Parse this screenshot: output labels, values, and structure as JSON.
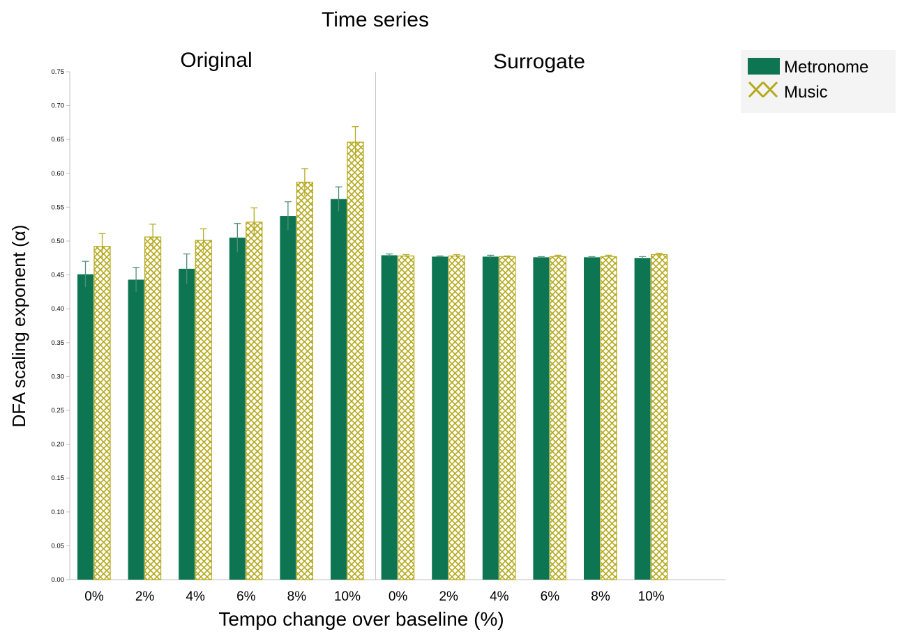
{
  "chart_data": {
    "type": "bar",
    "title": "Time series",
    "xlabel": "Tempo change over baseline (%)",
    "ylabel": "DFA scaling exponent  (α)",
    "ylim": [
      0,
      0.75
    ],
    "yticks": [
      "0.00",
      "0.05",
      "0.10",
      "0.15",
      "0.20",
      "0.25",
      "0.30",
      "0.35",
      "0.40",
      "0.45",
      "0.50",
      "0.55",
      "0.60",
      "0.65",
      "0.70",
      "0.75"
    ],
    "grid": false,
    "legend_position": "top-right",
    "colors": {
      "metronome": "#0e7553",
      "music": "#b5a81a",
      "music_bg": "#ffffff"
    },
    "panels": [
      {
        "label": "Original",
        "categories": [
          "0%",
          "2%",
          "4%",
          "6%",
          "8%",
          "10%"
        ],
        "series": [
          {
            "name": "Metronome",
            "values": [
              0.451,
              0.443,
              0.459,
              0.505,
              0.537,
              0.562
            ],
            "errors": [
              0.019,
              0.018,
              0.022,
              0.021,
              0.021,
              0.018
            ]
          },
          {
            "name": "Music",
            "values": [
              0.492,
              0.506,
              0.501,
              0.528,
              0.587,
              0.646
            ],
            "errors": [
              0.019,
              0.019,
              0.017,
              0.021,
              0.02,
              0.023
            ]
          }
        ]
      },
      {
        "label": "Surrogate",
        "categories": [
          "0%",
          "2%",
          "4%",
          "6%",
          "8%",
          "10%"
        ],
        "series": [
          {
            "name": "Metronome",
            "values": [
              0.479,
              0.477,
              0.477,
              0.476,
              0.476,
              0.475
            ],
            "errors": [
              0.002,
              0.001,
              0.002,
              0.001,
              0.001,
              0.002
            ]
          },
          {
            "name": "Music",
            "values": [
              0.478,
              0.478,
              0.477,
              0.477,
              0.477,
              0.48
            ],
            "errors": [
              0.002,
              0.002,
              0.001,
              0.002,
              0.002,
              0.002
            ]
          }
        ]
      }
    ],
    "legend": [
      "Metronome",
      "Music"
    ]
  }
}
